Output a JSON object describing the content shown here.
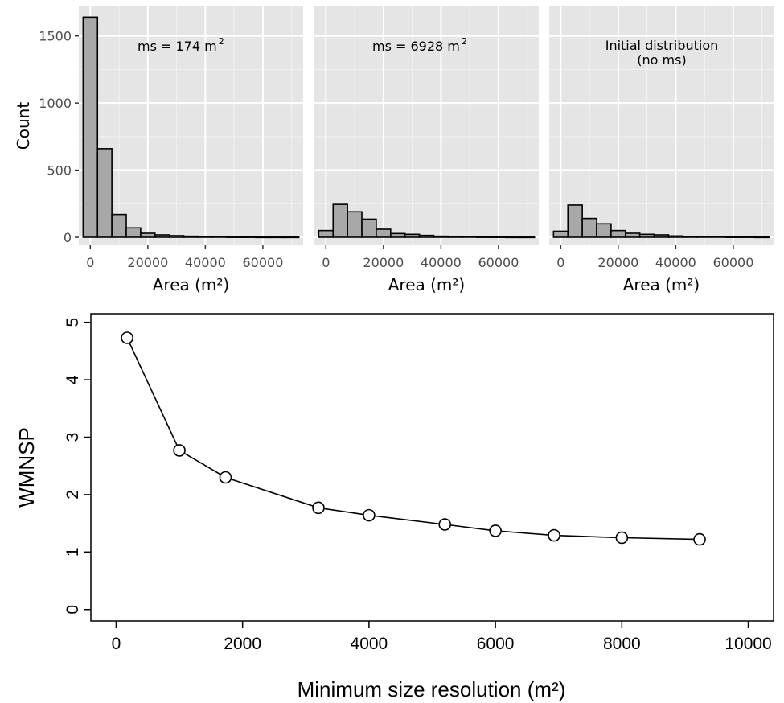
{
  "chart_data": [
    {
      "type": "bar",
      "annotation": "ms = 174 m",
      "annotation_superscript": "2",
      "xlabel": "Area (m²)",
      "ylabel": "Count",
      "xticks": [
        "0",
        "20000",
        "40000",
        "60000"
      ],
      "yticks": [
        "0",
        "500",
        "1000",
        "1500"
      ],
      "xlim": [
        -4000,
        74000
      ],
      "ylim": [
        -60,
        1720
      ],
      "bin_width": 5000,
      "bins_start": [
        -2500,
        2500,
        7500,
        12500,
        17500,
        22500,
        27500,
        32500,
        37500,
        42500,
        47500,
        52500,
        57500,
        62500,
        67500
      ],
      "values": [
        1640,
        660,
        170,
        70,
        30,
        18,
        12,
        8,
        4,
        3,
        2,
        2,
        1,
        1,
        1
      ],
      "grid": true
    },
    {
      "type": "bar",
      "annotation": "ms = 6928 m",
      "annotation_superscript": "2",
      "xlabel": "Area (m²)",
      "xticks": [
        "0",
        "20000",
        "40000",
        "60000"
      ],
      "xlim": [
        -4000,
        74000
      ],
      "ylim": [
        -60,
        1720
      ],
      "bin_width": 5000,
      "bins_start": [
        -2500,
        2500,
        7500,
        12500,
        17500,
        22500,
        27500,
        32500,
        37500,
        42500,
        47500,
        52500,
        57500,
        62500,
        67500
      ],
      "values": [
        50,
        245,
        190,
        135,
        60,
        28,
        22,
        14,
        8,
        5,
        3,
        2,
        2,
        1,
        1
      ],
      "grid": true
    },
    {
      "type": "bar",
      "annotation": "Initial distribution",
      "annotation_line2": "(no ms)",
      "xlabel": "Area (m²)",
      "xticks": [
        "0",
        "20000",
        "40000",
        "60000"
      ],
      "xlim": [
        -4000,
        74000
      ],
      "ylim": [
        -60,
        1720
      ],
      "bin_width": 5000,
      "bins_start": [
        -2500,
        2500,
        7500,
        12500,
        17500,
        22500,
        27500,
        32500,
        37500,
        42500,
        47500,
        52500,
        57500,
        62500,
        67500
      ],
      "values": [
        45,
        240,
        140,
        100,
        50,
        30,
        22,
        18,
        10,
        6,
        4,
        3,
        2,
        2,
        1
      ],
      "grid": true
    },
    {
      "type": "line",
      "xlabel": "Minimum size resolution (m²)",
      "ylabel": "WMNSP",
      "xticks": [
        "0",
        "2000",
        "4000",
        "6000",
        "8000",
        "10000"
      ],
      "yticks": [
        "0",
        "1",
        "2",
        "3",
        "4",
        "5"
      ],
      "xlim": [
        -400,
        10400
      ],
      "ylim": [
        -0.2,
        5.15
      ],
      "x": [
        174,
        1000,
        1730,
        3200,
        4000,
        5200,
        6000,
        6928,
        8000,
        9230
      ],
      "y": [
        4.73,
        2.77,
        2.3,
        1.77,
        1.64,
        1.48,
        1.37,
        1.29,
        1.25,
        1.22
      ],
      "markers": "open-circle",
      "grid": false
    }
  ]
}
